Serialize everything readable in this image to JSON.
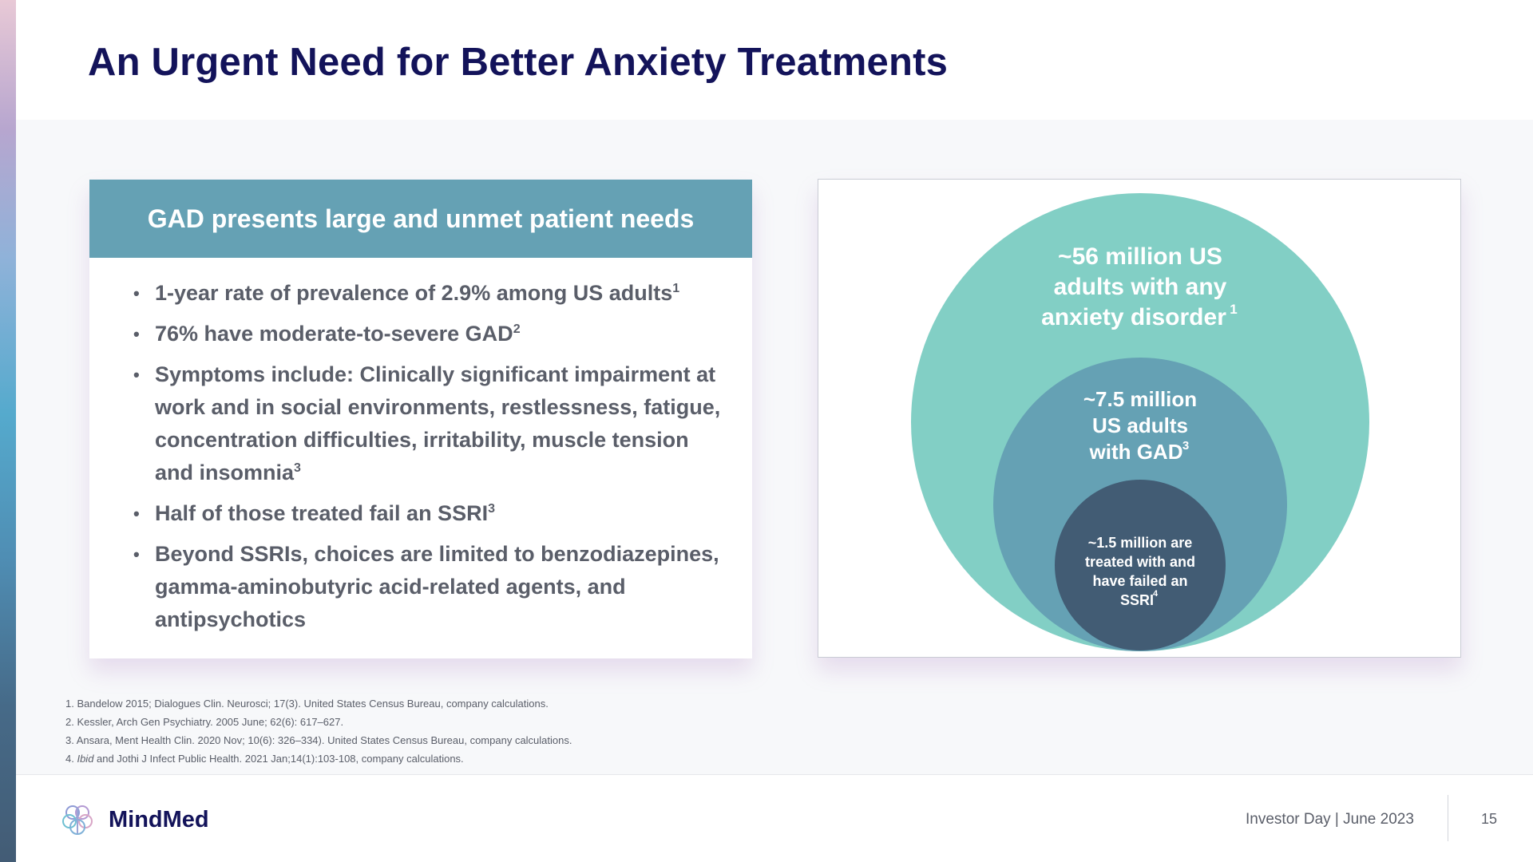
{
  "slide": {
    "title": "An Urgent Need for Better Anxiety Treatments"
  },
  "gad_card": {
    "header": "GAD presents large and unmet patient needs",
    "bullets": [
      {
        "text": "1-year rate of prevalence of 2.9% among US adults",
        "ref": "1"
      },
      {
        "text": "76% have moderate-to-severe GAD",
        "ref": "2"
      },
      {
        "text": "Symptoms include:  Clinically significant impairment at work and in social environments, restlessness, fatigue, concentration difficulties, irritability, muscle tension and insomnia",
        "ref": "3"
      },
      {
        "text": "Half of those treated fail an SSRI",
        "ref": "3"
      },
      {
        "text": "Beyond SSRIs, choices are limited to benzodiazepines, gamma-aminobutyric acid-related agents, and antipsychotics",
        "ref": ""
      }
    ]
  },
  "circles": {
    "outer": {
      "line1": "~56 million US",
      "line2": "adults with any",
      "line3": "anxiety disorder",
      "ref": "1",
      "color": "#82cfc5"
    },
    "middle": {
      "line1": "~7.5 million",
      "line2": "US adults",
      "line3": "with GAD",
      "ref": "3",
      "color": "#65a1b4"
    },
    "inner": {
      "line1": "~1.5 million are",
      "line2": "treated with and",
      "line3": "have failed an",
      "line4": "SSRI",
      "ref": "4",
      "color": "#425c74"
    }
  },
  "footnotes": [
    {
      "num": "1.",
      "text": "Bandelow 2015; Dialogues Clin. Neurosci; 17(3). United States Census Bureau, company calculations."
    },
    {
      "num": "2.",
      "text": "Kessler, Arch Gen Psychiatry. 2005 June; 62(6): 617–627."
    },
    {
      "num": "3.",
      "text": "Ansara, Ment Health Clin. 2020 Nov; 10(6): 326–334). United States Census Bureau, company calculations."
    },
    {
      "num": "4.",
      "italic": "Ibid",
      "text": " and Jothi J Infect Public Health. 2021 Jan;14(1):103-108, company calculations."
    }
  ],
  "footer": {
    "logo_text": "MindMed",
    "logo_icon": "brain-icon",
    "event": "Investor Day | June 2023",
    "page_number": "15"
  },
  "colors": {
    "title": "#13135a",
    "header_teal": "#65a1b4",
    "outer_circle": "#82cfc5",
    "middle_circle": "#65a1b4",
    "inner_circle": "#425c74"
  }
}
